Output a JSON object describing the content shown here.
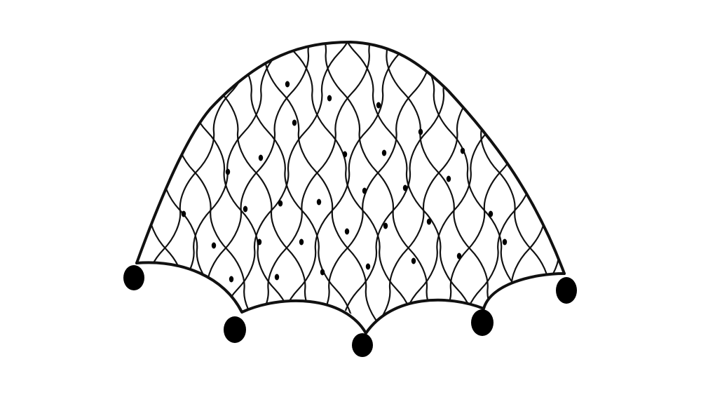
{
  "image": {
    "subject": "fishing-net",
    "background_color": "#ffffff",
    "line_color": "#111111",
    "weight_color": "#000000"
  }
}
